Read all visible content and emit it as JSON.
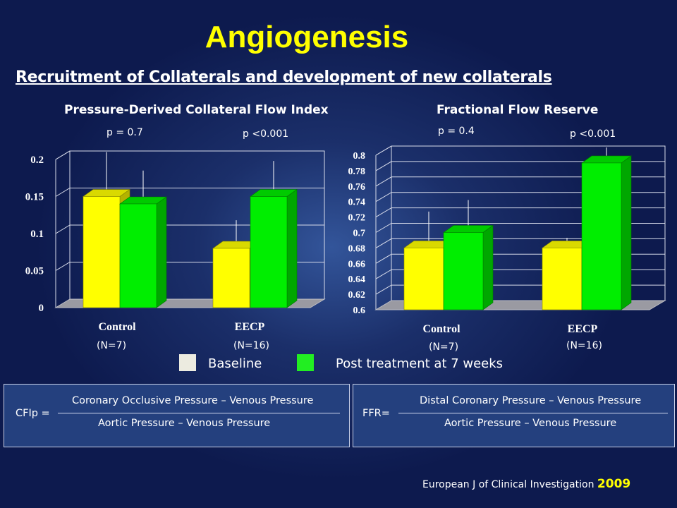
{
  "slide": {
    "title": "Angiogenesis",
    "subtitle": "Recruitment of Collaterals and development of new collaterals",
    "citation": "European J of Clinical Investigation",
    "citation_year": "2009"
  },
  "legend": {
    "items": [
      {
        "label": "Baseline",
        "color": "#ecebe0"
      },
      {
        "label": "Post treatment at 7 weeks",
        "color": "#22ee22"
      }
    ]
  },
  "formulas": [
    {
      "lhs": "CFIp =",
      "numerator": "Coronary Occlusive Pressure – Venous Pressure",
      "denominator": "Aortic Pressure – Venous Pressure"
    },
    {
      "lhs": "FFR=",
      "numerator": "Distal Coronary Pressure – Venous Pressure",
      "denominator": "Aortic Pressure – Venous Pressure"
    }
  ],
  "colors": {
    "baseline_bar": "#ffff00",
    "post_bar": "#00ee00"
  },
  "chart_data": [
    {
      "type": "bar",
      "title": "Pressure-Derived Collateral Flow Index",
      "categories": [
        "Control",
        "EECP"
      ],
      "n_labels": [
        "(N=7)",
        "(N=16)"
      ],
      "p_values": [
        "p = 0.7",
        "p <0.001"
      ],
      "series": [
        {
          "values": [
            0.15,
            0.08
          ],
          "error_upper": [
            0.21,
            0.118
          ]
        },
        {
          "values": [
            0.14,
            0.15
          ],
          "error_upper": [
            0.185,
            0.198
          ]
        }
      ],
      "ylim": [
        0,
        0.2
      ],
      "yticks": [
        0,
        0.05,
        0.1,
        0.15,
        0.2
      ],
      "ytick_labels": [
        "0",
        "0.05",
        "0.1",
        "0.15",
        "0.2"
      ],
      "grid": true
    },
    {
      "type": "bar",
      "title": "Fractional Flow Reserve",
      "categories": [
        "Control",
        "EECP"
      ],
      "n_labels": [
        "(N=7)",
        "(N=16)"
      ],
      "p_values": [
        "p = 0.4",
        "p <0.001"
      ],
      "series": [
        {
          "values": [
            0.68,
            0.68
          ],
          "error_upper": [
            0.727,
            0.693
          ]
        },
        {
          "values": [
            0.7,
            0.79
          ],
          "error_upper": [
            0.742,
            0.81
          ]
        }
      ],
      "ylim": [
        0.6,
        0.8
      ],
      "yticks": [
        0.6,
        0.62,
        0.64,
        0.66,
        0.68,
        0.7,
        0.72,
        0.74,
        0.76,
        0.78,
        0.8
      ],
      "ytick_labels": [
        "0.6",
        "0.62",
        "0.64",
        "0.66",
        "0.68",
        "0.7",
        "0.72",
        "0.74",
        "0.76",
        "0.78",
        "0.8"
      ],
      "grid": true
    }
  ]
}
